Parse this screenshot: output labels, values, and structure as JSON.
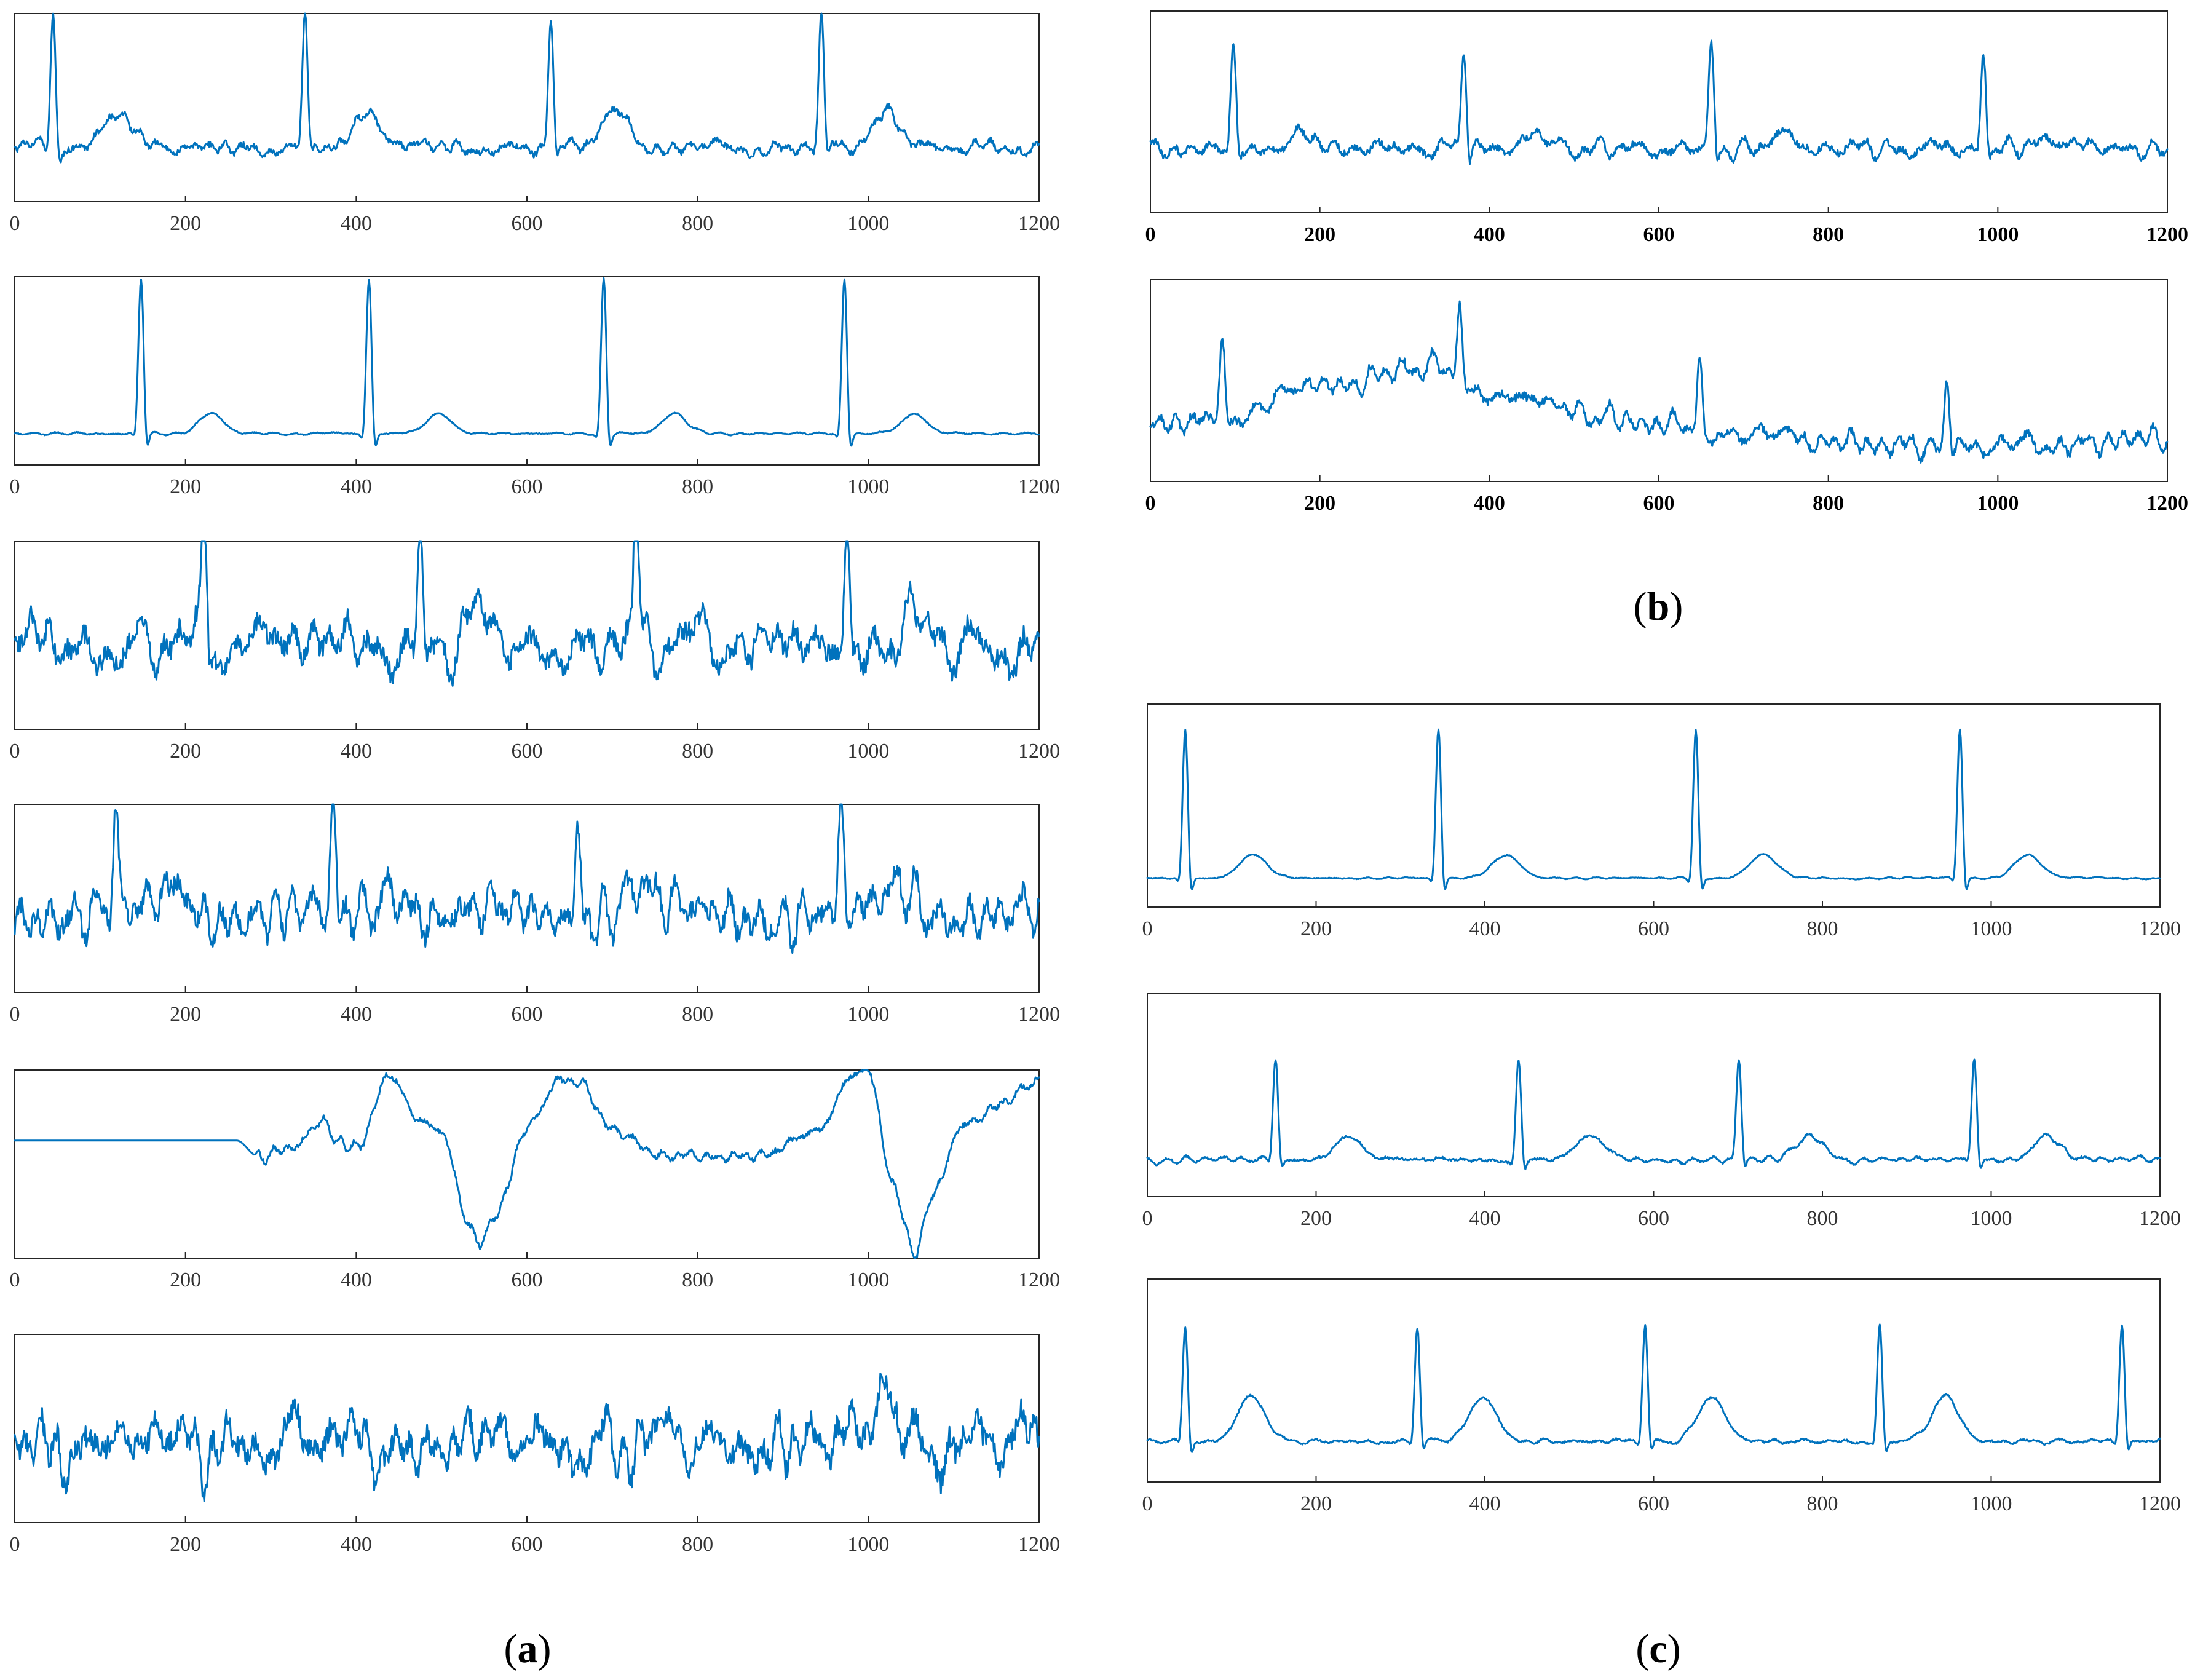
{
  "figure": {
    "panels": [
      {
        "id": "a",
        "label": "a"
      },
      {
        "id": "b",
        "label": "b"
      },
      {
        "id": "c",
        "label": "c"
      }
    ]
  },
  "colors": {
    "series": "#0072bd",
    "axes": "#262626",
    "text": "#333333"
  },
  "chart_data": [
    {
      "type": "line",
      "panel": "a",
      "index": 1,
      "title": "",
      "xlabel": "",
      "ylabel": "",
      "xlim": [
        0,
        1200
      ],
      "ylim": [
        -0.4,
        1.0
      ],
      "xticks": [
        0,
        200,
        400,
        600,
        800,
        1000,
        1200
      ],
      "bold_ticks": false,
      "grid": false,
      "seed": 11,
      "noise": 0.07,
      "beats": [
        45,
        340,
        628,
        945
      ],
      "qrs_amp": 0.98,
      "t_amp": 0.28,
      "t_offset": 75,
      "t_width": 16,
      "baseline": 0.0,
      "wander": [],
      "yvalues_note": "unlabeled y-axis; values are normalized amplitude"
    },
    {
      "type": "line",
      "panel": "a",
      "index": 2,
      "title": "",
      "xlabel": "",
      "ylabel": "",
      "xlim": [
        0,
        1200
      ],
      "ylim": [
        -0.2,
        1.0
      ],
      "xticks": [
        0,
        200,
        400,
        600,
        800,
        1000,
        1200
      ],
      "bold_ticks": false,
      "grid": false,
      "seed": 12,
      "noise": 0.01,
      "beats": [
        148,
        415,
        690,
        972
      ],
      "qrs_amp": 1.0,
      "t_amp": 0.13,
      "t_offset": 82,
      "t_width": 14,
      "baseline": 0.0,
      "wander": []
    },
    {
      "type": "line",
      "panel": "a",
      "index": 3,
      "title": "",
      "xlabel": "",
      "ylabel": "",
      "xlim": [
        0,
        1200
      ],
      "ylim": [
        -0.55,
        0.7
      ],
      "xticks": [
        0,
        200,
        400,
        600,
        800,
        1000,
        1200
      ],
      "bold_ticks": false,
      "grid": false,
      "seed": 13,
      "noise": 0.22,
      "beats": [
        222,
        475,
        728,
        975
      ],
      "qrs_amp": 0.85,
      "t_amp": 0.15,
      "t_offset": 70,
      "t_width": 16,
      "baseline": 0.0,
      "wander": []
    },
    {
      "type": "line",
      "panel": "a",
      "index": 4,
      "title": "",
      "xlabel": "",
      "ylabel": "",
      "xlim": [
        0,
        1200
      ],
      "ylim": [
        -0.5,
        0.7
      ],
      "xticks": [
        0,
        200,
        400,
        600,
        800,
        1000,
        1200
      ],
      "bold_ticks": false,
      "grid": false,
      "seed": 14,
      "noise": 0.2,
      "beats": [
        118,
        373,
        660,
        968
      ],
      "qrs_amp": 0.68,
      "t_amp": 0.18,
      "t_offset": 70,
      "t_width": 16,
      "baseline": 0.0,
      "wander": []
    },
    {
      "type": "line",
      "panel": "a",
      "index": 5,
      "title": "",
      "xlabel": "",
      "ylabel": "",
      "xlim": [
        0,
        1200
      ],
      "ylim": [
        -0.75,
        0.45
      ],
      "xticks": [
        0,
        200,
        400,
        600,
        800,
        1000,
        1200
      ],
      "bold_ticks": false,
      "grid": false,
      "seed": 15,
      "noise": 0.0,
      "beats": [],
      "qrs_amp": 0,
      "t_amp": 0,
      "t_offset": 0,
      "t_width": 1,
      "baseline": 0.0,
      "wander": [
        [
          0,
          0.0
        ],
        [
          260,
          0.0
        ],
        [
          285,
          -0.1
        ],
        [
          330,
          -0.02
        ],
        [
          360,
          0.12
        ],
        [
          375,
          0.0
        ],
        [
          400,
          -0.06
        ],
        [
          440,
          0.44
        ],
        [
          470,
          0.15
        ],
        [
          500,
          0.05
        ],
        [
          530,
          -0.52
        ],
        [
          545,
          -0.66
        ],
        [
          565,
          -0.45
        ],
        [
          600,
          0.1
        ],
        [
          640,
          0.38
        ],
        [
          660,
          0.36
        ],
        [
          700,
          0.08
        ],
        [
          760,
          -0.1
        ],
        [
          800,
          -0.11
        ],
        [
          880,
          -0.08
        ],
        [
          940,
          0.05
        ],
        [
          985,
          0.45
        ],
        [
          1000,
          0.45
        ],
        [
          1030,
          -0.3
        ],
        [
          1055,
          -0.75
        ],
        [
          1075,
          -0.35
        ],
        [
          1110,
          0.1
        ],
        [
          1160,
          0.25
        ],
        [
          1200,
          0.38
        ]
      ],
      "wander_noise": 0.05,
      "quiet_until": 280
    },
    {
      "type": "line",
      "panel": "a",
      "index": 6,
      "title": "",
      "xlabel": "",
      "ylabel": "",
      "xlim": [
        0,
        1200
      ],
      "ylim": [
        -0.55,
        0.75
      ],
      "xticks": [
        0,
        200,
        400,
        600,
        800,
        1000,
        1200
      ],
      "bold_ticks": false,
      "grid": false,
      "seed": 16,
      "noise": 0.26,
      "beats": [
        1022
      ],
      "qrs_amp": 0.55,
      "t_amp": 0.0,
      "t_offset": 70,
      "t_width": 16,
      "baseline": 0.0,
      "wander": [],
      "smooth_wide_peak": true
    },
    {
      "type": "line",
      "panel": "b",
      "index": 1,
      "title": "",
      "xlabel": "",
      "ylabel": "",
      "xlim": [
        0,
        1200
      ],
      "ylim": [
        -0.35,
        0.75
      ],
      "xticks": [
        0,
        200,
        400,
        600,
        800,
        1000,
        1200
      ],
      "bold_ticks": true,
      "grid": false,
      "seed": 21,
      "noise": 0.06,
      "beats": [
        98,
        370,
        662,
        983
      ],
      "qrs_amp": 0.55,
      "t_amp": 0.06,
      "t_offset": 85,
      "t_width": 18,
      "baseline": 0.0,
      "wander": []
    },
    {
      "type": "line",
      "panel": "b",
      "index": 2,
      "title": "",
      "xlabel": "",
      "ylabel": "",
      "xlim": [
        0,
        1200
      ],
      "ylim": [
        -0.4,
        1.0
      ],
      "xticks": [
        0,
        200,
        400,
        600,
        800,
        1000,
        1200
      ],
      "bold_ticks": true,
      "grid": false,
      "seed": 22,
      "noise": 0.09,
      "beats": [
        85,
        365,
        648,
        940
      ],
      "qrs_amp": 0.5,
      "t_amp": 0.06,
      "t_offset": 80,
      "t_width": 18,
      "baseline": 0.0,
      "wander": [
        [
          0,
          0.0
        ],
        [
          100,
          0.05
        ],
        [
          200,
          0.25
        ],
        [
          330,
          0.4
        ],
        [
          420,
          0.15
        ],
        [
          600,
          0.0
        ],
        [
          700,
          -0.1
        ],
        [
          900,
          -0.15
        ],
        [
          1000,
          -0.18
        ],
        [
          1200,
          -0.1
        ]
      ]
    },
    {
      "type": "line",
      "panel": "c",
      "index": 1,
      "title": "",
      "xlabel": "",
      "ylabel": "",
      "xlim": [
        0,
        1200
      ],
      "ylim": [
        -0.15,
        0.9
      ],
      "xticks": [
        0,
        200,
        400,
        600,
        800,
        1000,
        1200
      ],
      "bold_ticks": false,
      "grid": false,
      "seed": 31,
      "noise": 0.006,
      "beats": [
        45,
        345,
        650,
        963
      ],
      "qrs_amp": 0.78,
      "t_amp": 0.12,
      "t_offset": 80,
      "t_width": 16,
      "baseline": 0.0,
      "wander": []
    },
    {
      "type": "line",
      "panel": "c",
      "index": 2,
      "title": "",
      "xlabel": "",
      "ylabel": "",
      "xlim": [
        0,
        1200
      ],
      "ylim": [
        -0.2,
        0.9
      ],
      "xticks": [
        0,
        200,
        400,
        600,
        800,
        1000,
        1200
      ],
      "bold_ticks": false,
      "grid": false,
      "seed": 32,
      "noise": 0.02,
      "beats": [
        152,
        440,
        701,
        980
      ],
      "qrs_amp": 0.55,
      "t_amp": 0.13,
      "t_offset": 85,
      "t_width": 16,
      "baseline": 0.0,
      "wander": []
    },
    {
      "type": "line",
      "panel": "c",
      "index": 3,
      "title": "",
      "xlabel": "",
      "ylabel": "",
      "xlim": [
        0,
        1200
      ],
      "ylim": [
        -0.2,
        0.8
      ],
      "xticks": [
        0,
        200,
        400,
        600,
        800,
        1000,
        1200
      ],
      "bold_ticks": false,
      "grid": false,
      "seed": 33,
      "noise": 0.015,
      "beats": [
        45,
        320,
        590,
        868,
        1155
      ],
      "qrs_amp": 0.58,
      "t_amp": 0.22,
      "t_offset": 78,
      "t_width": 16,
      "baseline": 0.0,
      "wander": []
    }
  ]
}
